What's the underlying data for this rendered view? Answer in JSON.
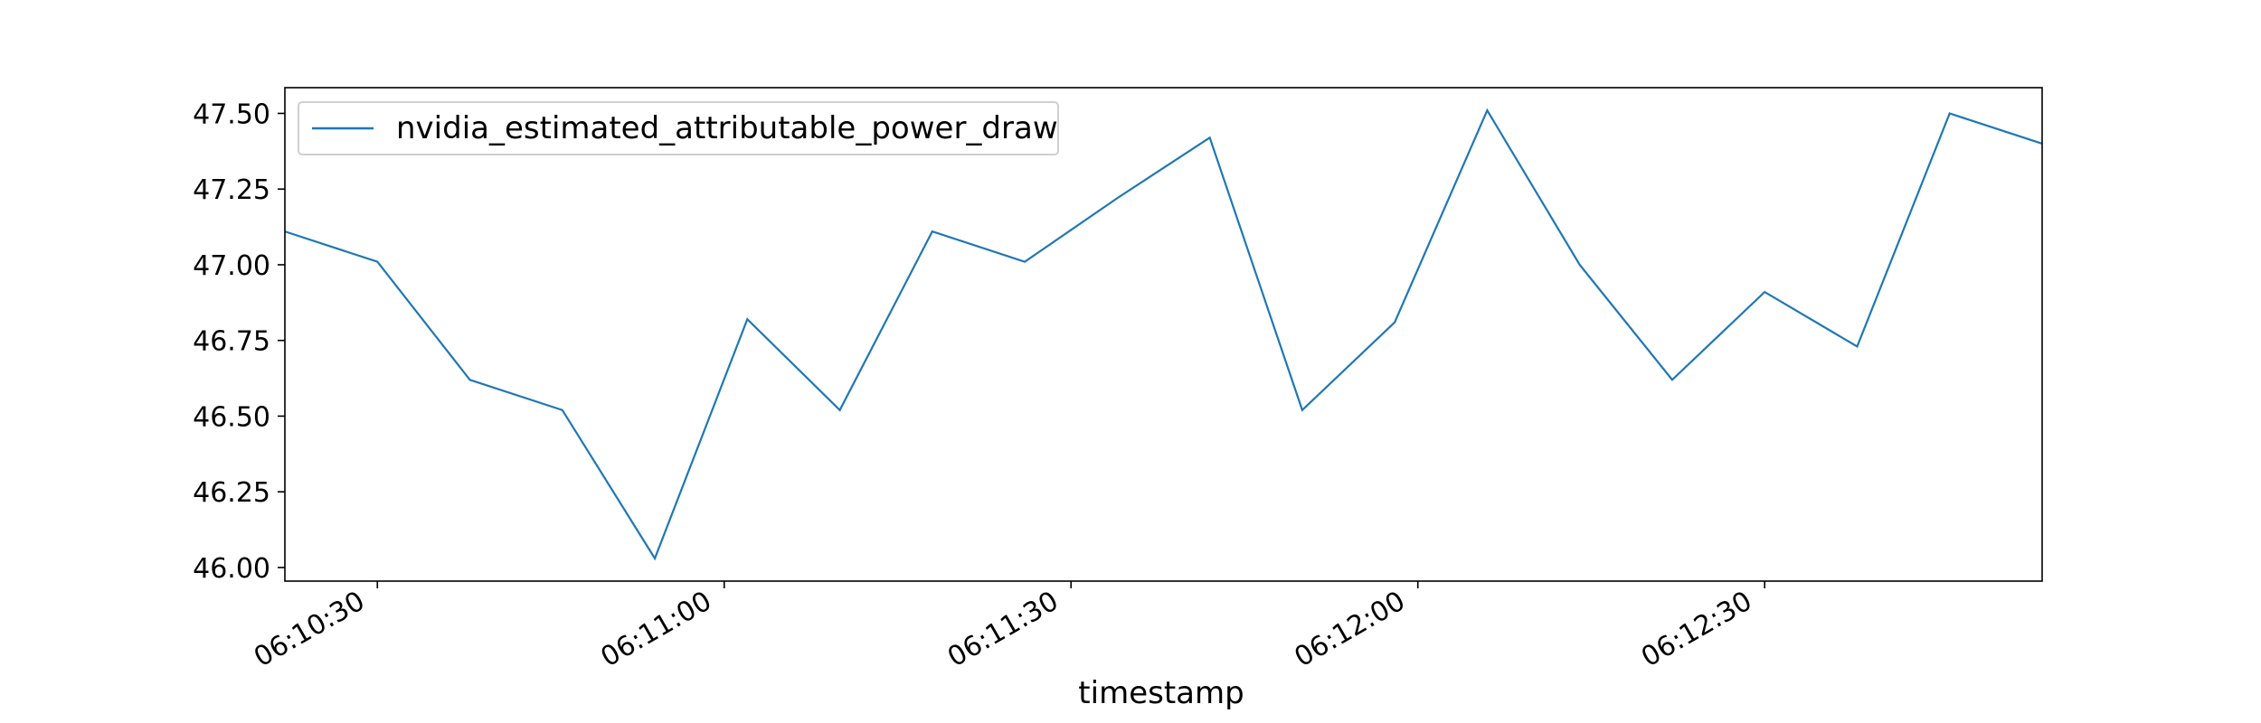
{
  "chart_data": {
    "type": "line",
    "title": "",
    "xlabel": "timestamp",
    "ylabel": "",
    "x": [
      "06:10:22",
      "06:10:30",
      "06:10:38",
      "06:10:46",
      "06:10:54",
      "06:11:02",
      "06:11:10",
      "06:11:18",
      "06:11:26",
      "06:11:34",
      "06:11:42",
      "06:11:50",
      "06:11:58",
      "06:12:06",
      "06:12:14",
      "06:12:22",
      "06:12:30",
      "06:12:38",
      "06:12:46",
      "06:12:54"
    ],
    "series": [
      {
        "name": "nvidia_estimated_attributable_power_draw",
        "color": "#1f77b4",
        "values": [
          47.11,
          47.01,
          46.62,
          46.52,
          46.03,
          46.82,
          46.52,
          47.11,
          47.01,
          47.22,
          47.42,
          46.52,
          46.81,
          47.51,
          47.0,
          46.62,
          46.91,
          46.73,
          47.5,
          47.4
        ]
      }
    ],
    "xlim": [
      "06:10:22",
      "06:12:54"
    ],
    "ylim": [
      45.955,
      47.585
    ],
    "xticks": [
      "06:10:30",
      "06:11:00",
      "06:11:30",
      "06:12:00",
      "06:12:30"
    ],
    "yticks": [
      "46.00",
      "46.25",
      "46.50",
      "46.75",
      "47.00",
      "47.25",
      "47.50"
    ],
    "grid": false,
    "legend_position": "upper-left"
  }
}
